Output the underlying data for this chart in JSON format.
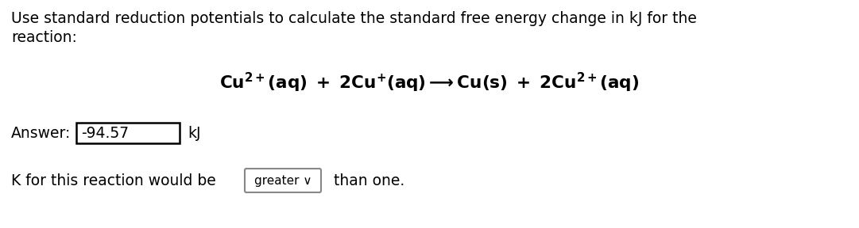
{
  "bg_color": "#ffffff",
  "text_color": "#000000",
  "line1": "Use standard reduction potentials to calculate the standard free energy change in kJ for the",
  "line2": "reaction:",
  "answer_label": "Answer:",
  "answer_value": "-94.57",
  "answer_unit": "kJ",
  "k_line_prefix": "K for this reaction would be",
  "k_dropdown_text": "greater ∨",
  "k_line_suffix": "  than one.",
  "font_size_body": 13.5,
  "font_size_eq": 15.5,
  "fig_width": 10.81,
  "fig_height": 2.88,
  "dpi": 100
}
